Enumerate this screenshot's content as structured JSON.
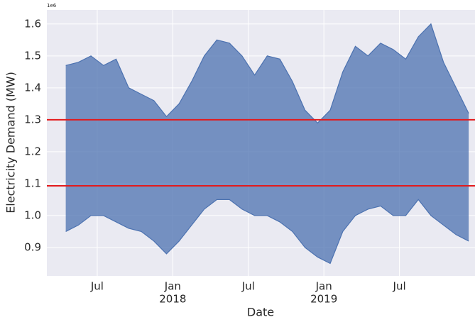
{
  "chart_data": {
    "type": "line",
    "xlabel": "Date",
    "ylabel": "Electricity Demand (MW)",
    "offset_label": "1e6",
    "x": [
      "2017-04",
      "2017-05",
      "2017-06",
      "2017-07",
      "2017-08",
      "2017-09",
      "2017-10",
      "2017-11",
      "2017-12",
      "2018-01",
      "2018-02",
      "2018-03",
      "2018-04",
      "2018-05",
      "2018-06",
      "2018-07",
      "2018-08",
      "2018-09",
      "2018-10",
      "2018-11",
      "2018-12",
      "2019-01",
      "2019-02",
      "2019-03",
      "2019-04",
      "2019-05",
      "2019-06",
      "2019-07",
      "2019-08",
      "2019-09",
      "2019-10",
      "2019-11",
      "2019-12"
    ],
    "series": [
      {
        "color": "#4c72b0",
        "values": [
          1470000,
          1480000,
          1500000,
          1470000,
          1490000,
          1400000,
          1380000,
          1360000,
          1310000,
          1350000,
          1420000,
          1500000,
          1550000,
          1540000,
          1500000,
          1440000,
          1500000,
          1490000,
          1420000,
          1330000,
          1290000,
          1330000,
          1450000,
          1530000,
          1500000,
          1540000,
          1520000,
          1490000,
          1560000,
          1600000,
          1480000,
          1400000,
          1320000
        ]
      },
      {
        "color": "#4c72b0",
        "values": [
          950000,
          970000,
          1000000,
          1000000,
          980000,
          960000,
          950000,
          920000,
          880000,
          920000,
          970000,
          1020000,
          1050000,
          1050000,
          1020000,
          1000000,
          1000000,
          980000,
          950000,
          900000,
          870000,
          850000,
          950000,
          1000000,
          1020000,
          1030000,
          1000000,
          1000000,
          1050000,
          1000000,
          970000,
          940000,
          920000
        ]
      }
    ],
    "hlines": [
      {
        "value": 1300000,
        "color": "#e31a1c"
      },
      {
        "value": 1093000,
        "color": "#e31a1c"
      }
    ],
    "xlim": [
      "2017-03",
      "2019-12"
    ],
    "xticks": [
      {
        "value": "2017-07",
        "label": "Jul"
      },
      {
        "value": "2018-01",
        "label": "Jan",
        "year": "2018"
      },
      {
        "value": "2018-07",
        "label": "Jul"
      },
      {
        "value": "2019-01",
        "label": "Jan",
        "year": "2019"
      },
      {
        "value": "2019-07",
        "label": "Jul"
      }
    ],
    "ylim": [
      811000,
      1644000
    ],
    "yticks": [
      {
        "value": 900000,
        "label": "0.9"
      },
      {
        "value": 1000000,
        "label": "1.0"
      },
      {
        "value": 1100000,
        "label": "1.1"
      },
      {
        "value": 1200000,
        "label": "1.2"
      },
      {
        "value": 1300000,
        "label": "1.3"
      },
      {
        "value": 1400000,
        "label": "1.4"
      },
      {
        "value": 1500000,
        "label": "1.5"
      },
      {
        "value": 1600000,
        "label": "1.6"
      }
    ],
    "grid": true,
    "background": "#eaeaf2"
  }
}
